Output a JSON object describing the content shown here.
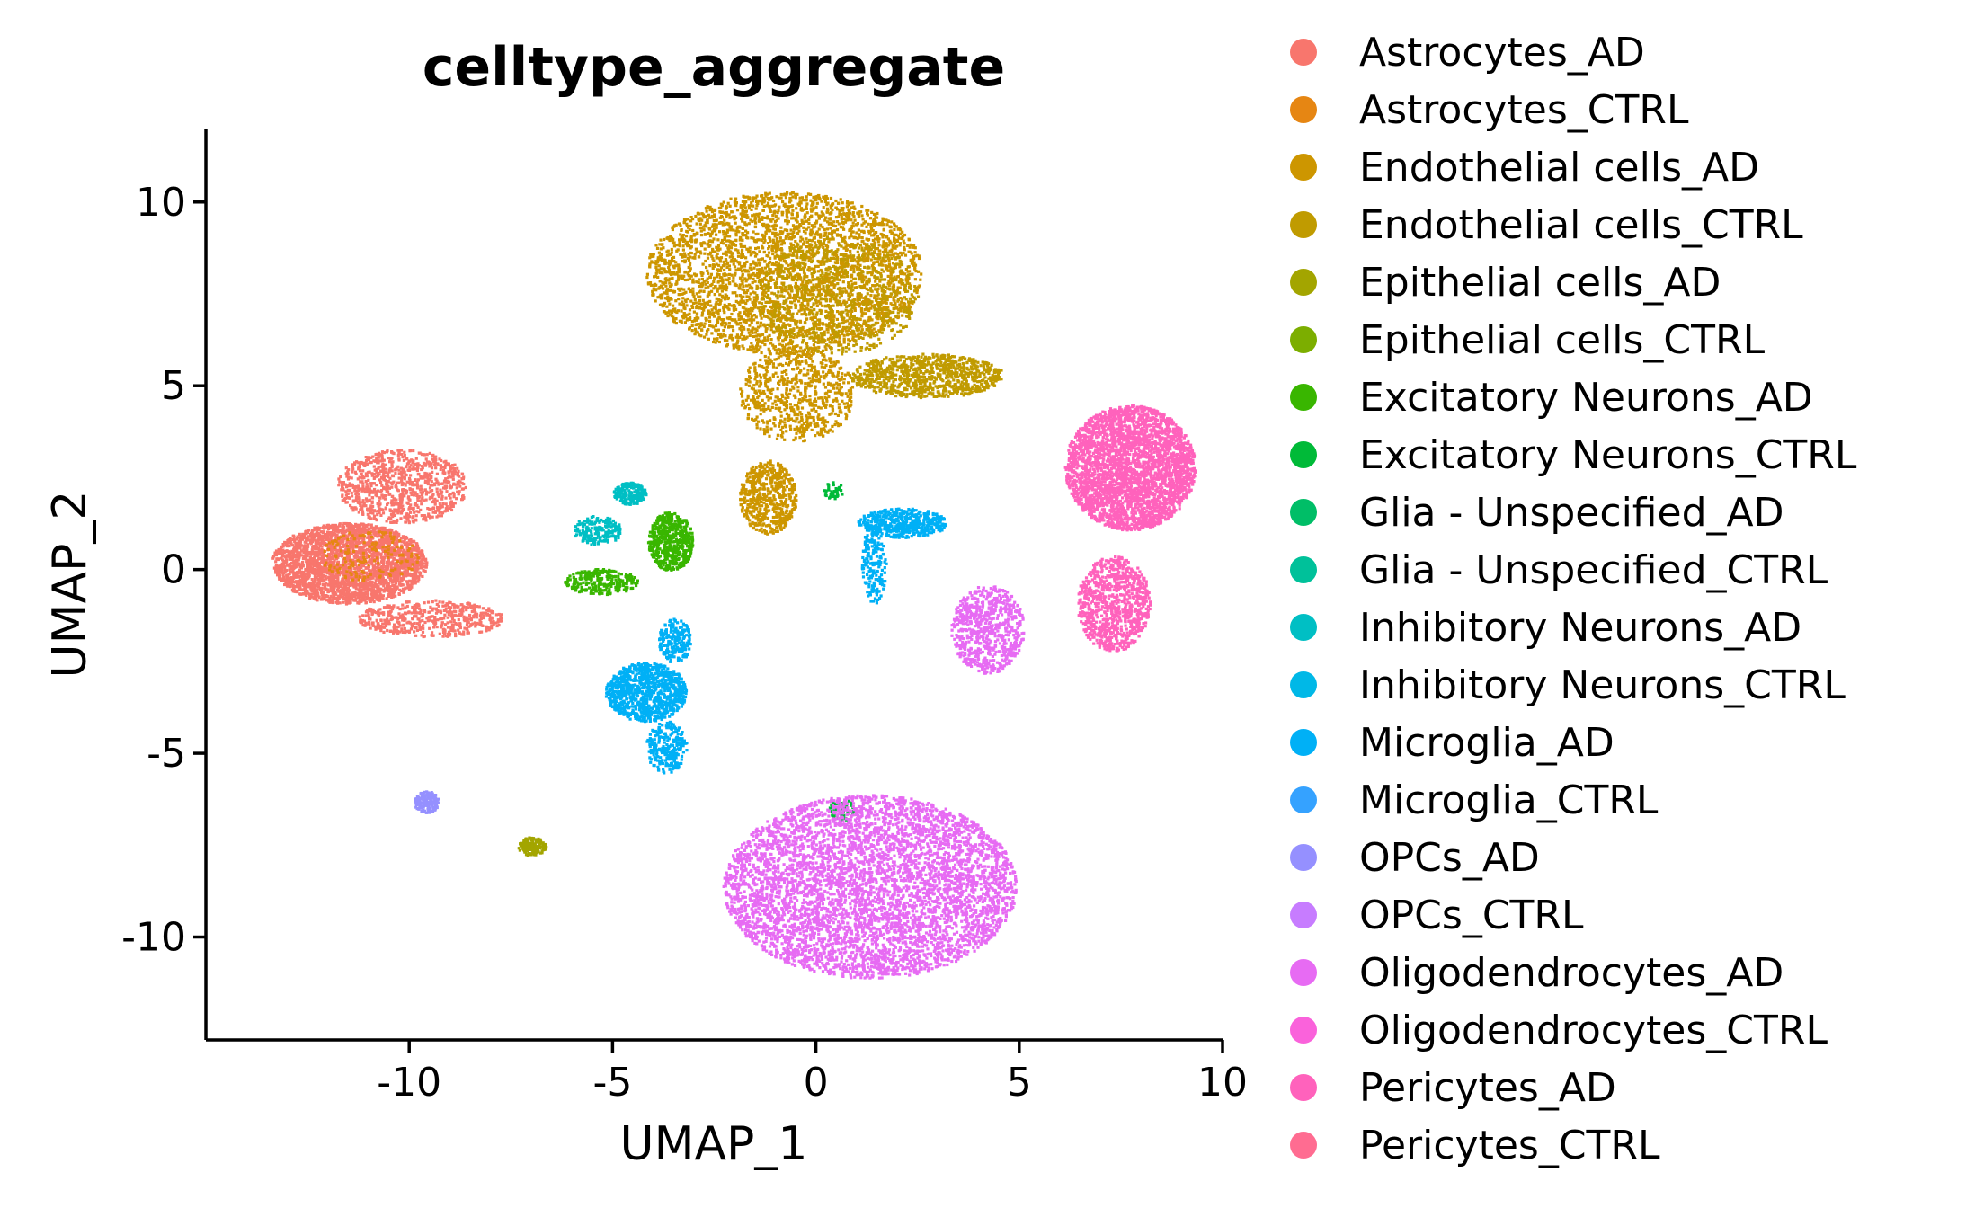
{
  "chart_data": {
    "type": "scatter",
    "title": "celltype_aggregate",
    "xlabel": "UMAP_1",
    "ylabel": "UMAP_2",
    "xlim": [
      -15,
      10
    ],
    "ylim": [
      -12.8,
      12
    ],
    "x_ticks": [
      -10,
      -5,
      0,
      5,
      10
    ],
    "y_ticks": [
      -10,
      -5,
      0,
      5,
      10
    ],
    "grid": false,
    "legend_position": "right",
    "legend": [
      {
        "label": "Astrocytes_AD",
        "color": "#F8766D"
      },
      {
        "label": "Astrocytes_CTRL",
        "color": "#E68613"
      },
      {
        "label": "Endothelial cells_AD",
        "color": "#CD9600"
      },
      {
        "label": "Endothelial cells_CTRL",
        "color": "#C09B00"
      },
      {
        "label": "Epithelial cells_AD",
        "color": "#A3A500"
      },
      {
        "label": "Epithelial cells_CTRL",
        "color": "#7CAE00"
      },
      {
        "label": "Excitatory Neurons_AD",
        "color": "#39B600"
      },
      {
        "label": "Excitatory Neurons_CTRL",
        "color": "#00BA38"
      },
      {
        "label": "Glia - Unspecified_AD",
        "color": "#00BE67"
      },
      {
        "label": "Glia - Unspecified_CTRL",
        "color": "#00C19A"
      },
      {
        "label": "Inhibitory Neurons_AD",
        "color": "#00BFC4"
      },
      {
        "label": "Inhibitory Neurons_CTRL",
        "color": "#00B8E7"
      },
      {
        "label": "Microglia_AD",
        "color": "#00B0F6"
      },
      {
        "label": "Microglia_CTRL",
        "color": "#35A2FF"
      },
      {
        "label": "OPCs_AD",
        "color": "#9590FF"
      },
      {
        "label": "OPCs_CTRL",
        "color": "#C77CFF"
      },
      {
        "label": "Oligodendrocytes_AD",
        "color": "#E76BF3"
      },
      {
        "label": "Oligodendrocytes_CTRL",
        "color": "#FA62DB"
      },
      {
        "label": "Pericytes_AD",
        "color": "#FF62BC"
      },
      {
        "label": "Pericytes_CTRL",
        "color": "#FF6C91"
      }
    ],
    "clusters": [
      {
        "series": "Astrocytes_AD",
        "cx": -11.5,
        "cy": 0.2,
        "rx": 1.9,
        "ry": 1.1,
        "n": 2600
      },
      {
        "series": "Astrocytes_AD",
        "cx": -10.2,
        "cy": 2.3,
        "rx": 1.6,
        "ry": 1.0,
        "n": 900
      },
      {
        "series": "Astrocytes_AD",
        "cx": -9.5,
        "cy": -1.3,
        "rx": 1.8,
        "ry": 0.5,
        "n": 500
      },
      {
        "series": "Astrocytes_CTRL",
        "cx": -11.0,
        "cy": 0.4,
        "rx": 1.2,
        "ry": 0.7,
        "n": 160
      },
      {
        "series": "Endothelial cells_AD",
        "cx": -0.8,
        "cy": 8.1,
        "rx": 3.4,
        "ry": 2.2,
        "n": 3400
      },
      {
        "series": "Endothelial cells_AD",
        "cx": -0.5,
        "cy": 4.8,
        "rx": 1.4,
        "ry": 1.3,
        "n": 700
      },
      {
        "series": "Endothelial cells_AD",
        "cx": -1.2,
        "cy": 2.0,
        "rx": 0.7,
        "ry": 1.0,
        "n": 550
      },
      {
        "series": "Endothelial cells_CTRL",
        "cx": 2.7,
        "cy": 5.3,
        "rx": 1.9,
        "ry": 0.6,
        "n": 900
      },
      {
        "series": "Endothelial cells_CTRL",
        "cx": 0.5,
        "cy": 7.5,
        "rx": 2.0,
        "ry": 1.6,
        "n": 700
      },
      {
        "series": "Epithelial cells_AD",
        "cx": -7.0,
        "cy": -7.5,
        "rx": 0.35,
        "ry": 0.25,
        "n": 160
      },
      {
        "series": "Excitatory Neurons_AD",
        "cx": -3.6,
        "cy": 0.8,
        "rx": 0.55,
        "ry": 0.8,
        "n": 550
      },
      {
        "series": "Excitatory Neurons_AD",
        "cx": -5.3,
        "cy": -0.3,
        "rx": 0.9,
        "ry": 0.35,
        "n": 260
      },
      {
        "series": "Excitatory Neurons_CTRL",
        "cx": 0.6,
        "cy": -6.5,
        "rx": 0.3,
        "ry": 0.3,
        "n": 60
      },
      {
        "series": "Excitatory Neurons_CTRL",
        "cx": 0.4,
        "cy": 2.2,
        "rx": 0.25,
        "ry": 0.25,
        "n": 40
      },
      {
        "series": "Inhibitory Neurons_AD",
        "cx": -4.6,
        "cy": 2.1,
        "rx": 0.4,
        "ry": 0.3,
        "n": 200
      },
      {
        "series": "Inhibitory Neurons_AD",
        "cx": -5.4,
        "cy": 1.1,
        "rx": 0.6,
        "ry": 0.4,
        "n": 200
      },
      {
        "series": "Microglia_AD",
        "cx": -4.2,
        "cy": -3.3,
        "rx": 1.0,
        "ry": 0.8,
        "n": 1000
      },
      {
        "series": "Microglia_AD",
        "cx": -3.7,
        "cy": -4.8,
        "rx": 0.5,
        "ry": 0.7,
        "n": 260
      },
      {
        "series": "Microglia_AD",
        "cx": -3.5,
        "cy": -1.9,
        "rx": 0.4,
        "ry": 0.6,
        "n": 220
      },
      {
        "series": "Microglia_AD",
        "cx": 2.1,
        "cy": 1.3,
        "rx": 1.1,
        "ry": 0.4,
        "n": 500
      },
      {
        "series": "Microglia_AD",
        "cx": 1.4,
        "cy": 0.2,
        "rx": 0.3,
        "ry": 1.1,
        "n": 200
      },
      {
        "series": "OPCs_AD",
        "cx": -9.6,
        "cy": -6.3,
        "rx": 0.3,
        "ry": 0.3,
        "n": 160
      },
      {
        "series": "Oligodendrocytes_AD",
        "cx": 1.3,
        "cy": -8.6,
        "rx": 3.6,
        "ry": 2.5,
        "n": 5200
      },
      {
        "series": "Oligodendrocytes_AD",
        "cx": 4.2,
        "cy": -1.6,
        "rx": 0.9,
        "ry": 1.2,
        "n": 700
      },
      {
        "series": "Pericytes_AD",
        "cx": 7.7,
        "cy": 2.8,
        "rx": 1.6,
        "ry": 1.7,
        "n": 3200
      },
      {
        "series": "Pericytes_AD",
        "cx": 7.3,
        "cy": -0.9,
        "rx": 0.9,
        "ry": 1.3,
        "n": 900
      }
    ]
  }
}
